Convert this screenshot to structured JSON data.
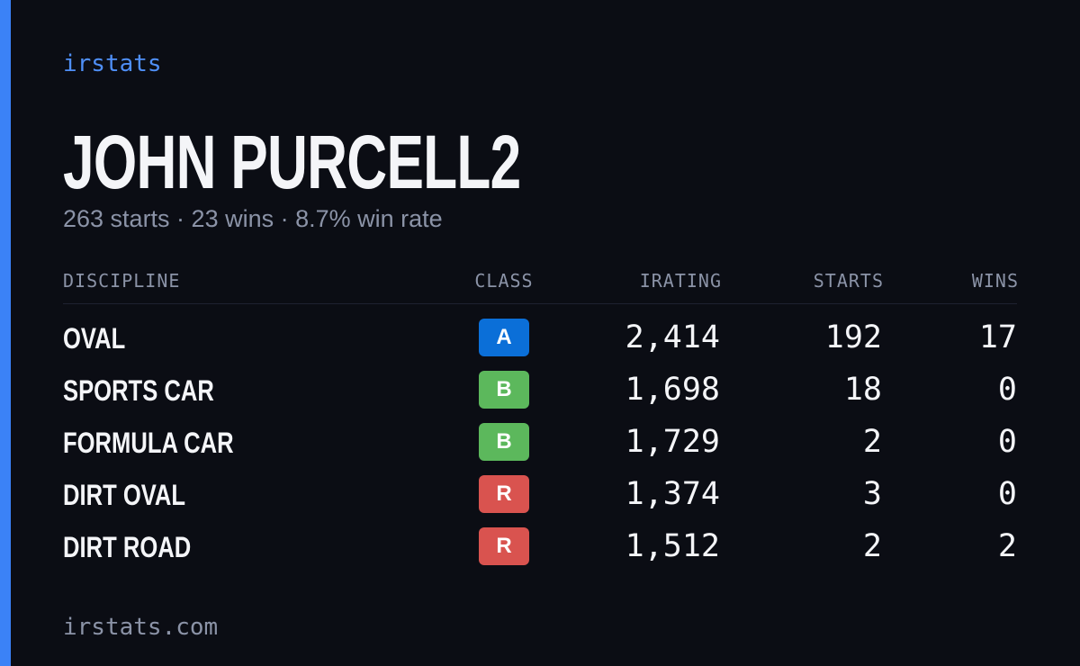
{
  "brand": "irstats",
  "profile": {
    "name": "JOHN PURCELL2",
    "summary": "263 starts · 23 wins · 8.7% win rate"
  },
  "table": {
    "headers": [
      "DISCIPLINE",
      "CLASS",
      "IRATING",
      "STARTS",
      "WINS"
    ],
    "rows": [
      {
        "discipline": "OVAL",
        "class": "A",
        "class_color": "#0b6fd8",
        "irating": "2,414",
        "starts": 192,
        "wins": 17
      },
      {
        "discipline": "SPORTS CAR",
        "class": "B",
        "class_color": "#5cb85c",
        "irating": "1,698",
        "starts": 18,
        "wins": 0
      },
      {
        "discipline": "FORMULA CAR",
        "class": "B",
        "class_color": "#5cb85c",
        "irating": "1,729",
        "starts": 2,
        "wins": 0
      },
      {
        "discipline": "DIRT OVAL",
        "class": "R",
        "class_color": "#d9534f",
        "irating": "1,374",
        "starts": 3,
        "wins": 0
      },
      {
        "discipline": "DIRT ROAD",
        "class": "R",
        "class_color": "#d9534f",
        "irating": "1,512",
        "starts": 2,
        "wins": 2
      }
    ]
  },
  "footer": "irstats.com"
}
